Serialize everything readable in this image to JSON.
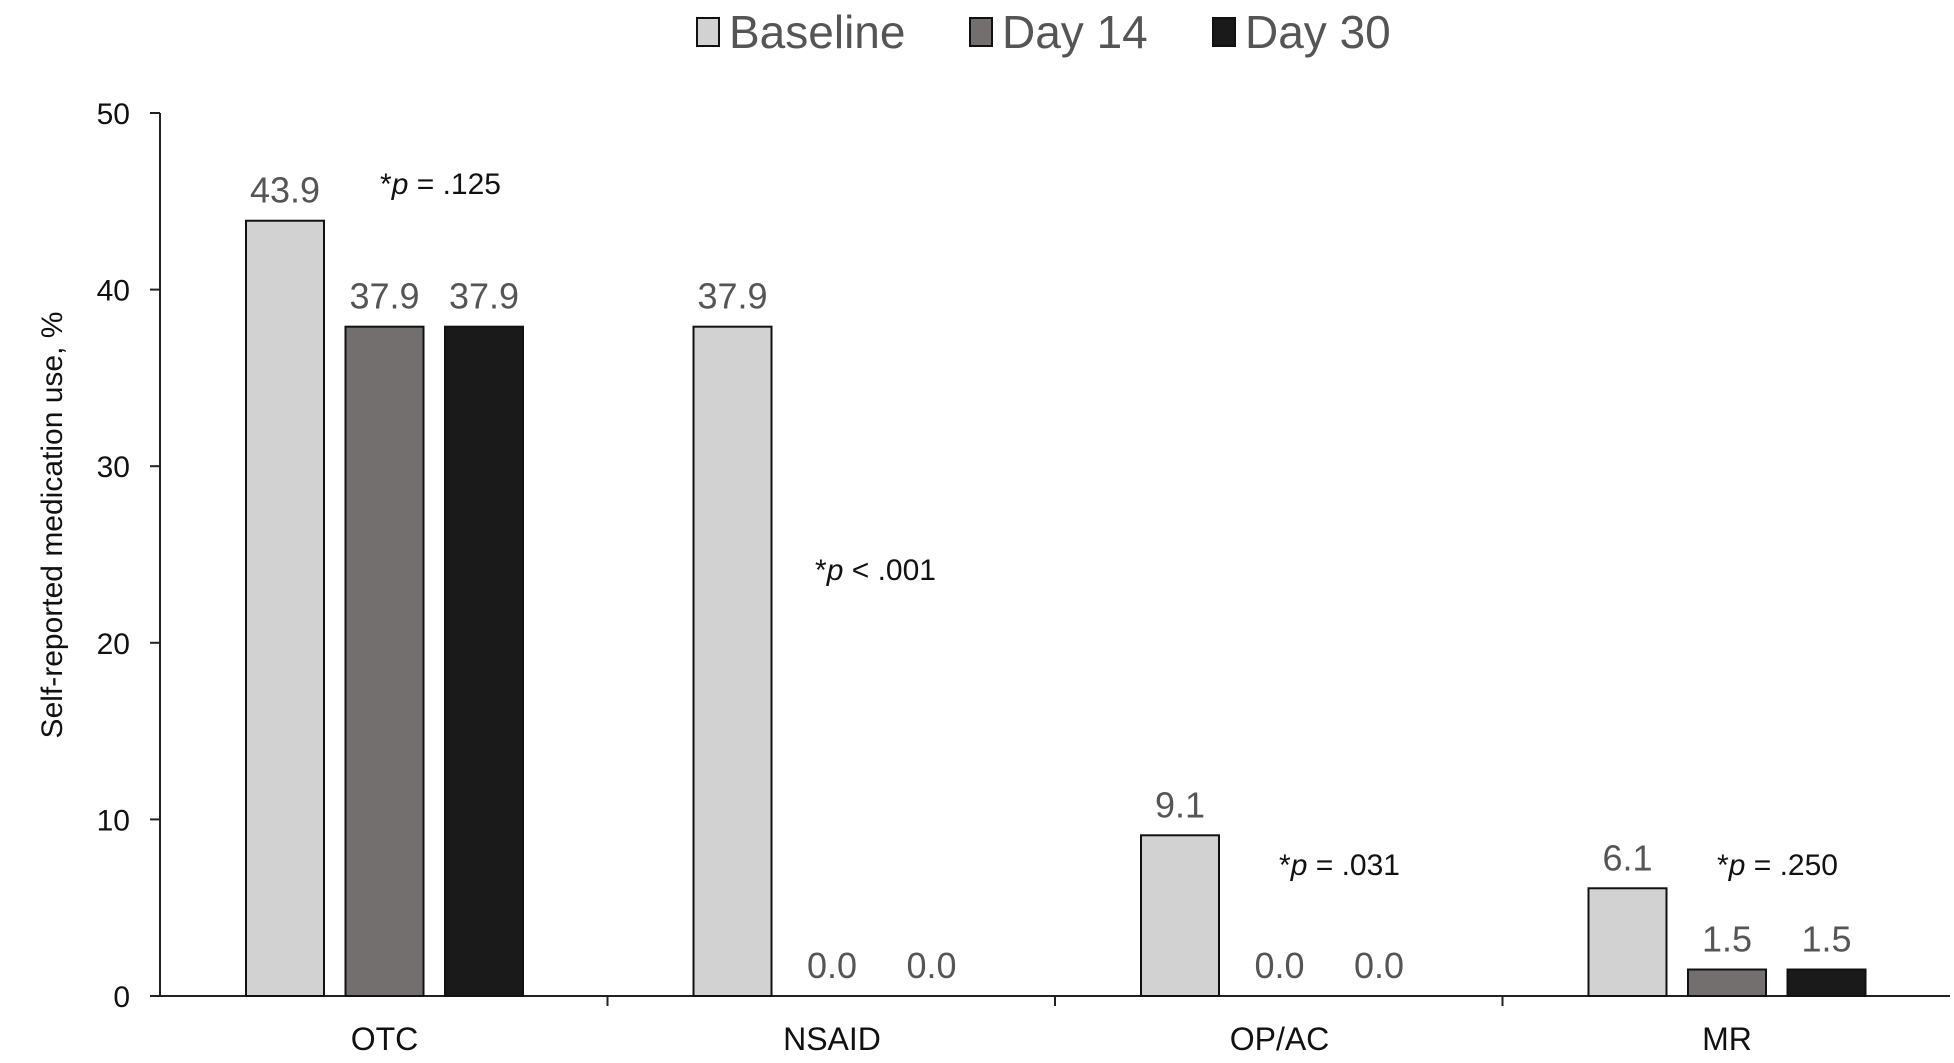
{
  "chart_data": {
    "type": "bar",
    "categories": [
      "OTC",
      "NSAID",
      "OP/AC",
      "MR"
    ],
    "series": [
      {
        "name": "Baseline",
        "values": [
          43.9,
          37.9,
          9.1,
          6.1
        ],
        "color": "#d2d2d2"
      },
      {
        "name": "Day 14",
        "values": [
          37.9,
          0.0,
          0.0,
          1.5
        ],
        "color": "#736f6e"
      },
      {
        "name": "Day 30",
        "values": [
          37.9,
          0.0,
          0.0,
          1.5
        ],
        "color": "#1a1a1a"
      }
    ],
    "ylabel": "Self-reported medication use, %",
    "ylim": [
      0,
      50
    ],
    "yticks": [
      0,
      10,
      20,
      30,
      40,
      50
    ],
    "legend_position": "top",
    "grid": false,
    "annotations": [
      {
        "category": "OTC",
        "text": "= .125"
      },
      {
        "category": "NSAID",
        "text": "< .001"
      },
      {
        "category": "OP/AC",
        "text": "= .031"
      },
      {
        "category": "MR",
        "text": "= .250"
      }
    ]
  }
}
